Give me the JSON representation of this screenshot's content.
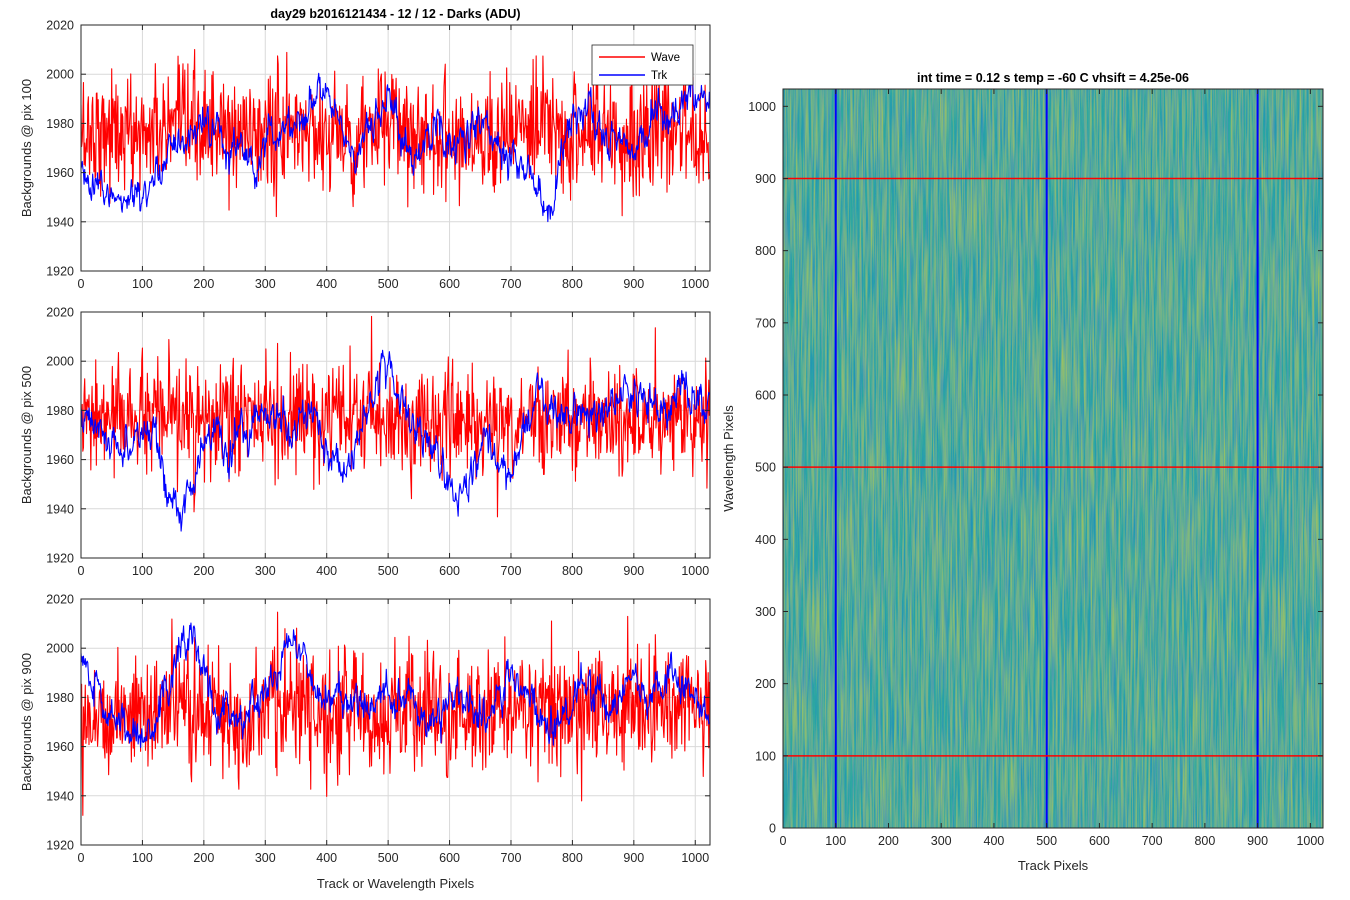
{
  "colors": {
    "wave": "#ff0000",
    "trk": "#0000ff",
    "grid": "#d9d9d9",
    "axis": "#262626",
    "image_base": "#2ea8a0",
    "image_light": "#a9c842",
    "image_dark": "#1a86c4"
  },
  "chart_data": [
    {
      "type": "line",
      "title": "day29 b2016121434 - 12 / 12 - Darks (ADU)",
      "ylabel": "Backgrounds @ pix 100",
      "xlabel": "",
      "xlim": [
        0,
        1024
      ],
      "ylim": [
        1920,
        2020
      ],
      "xticks": [
        "0",
        "100",
        "200",
        "300",
        "400",
        "500",
        "600",
        "700",
        "800",
        "900",
        "1000"
      ],
      "yticks": [
        "1920",
        "1940",
        "1960",
        "1980",
        "2000",
        "2020"
      ],
      "grid": true,
      "legend": {
        "placement": "top-right",
        "entries": [
          "Wave",
          "Trk"
        ]
      },
      "series": [
        {
          "name": "Wave",
          "color": "#ff0000",
          "baseline": 1975,
          "spread": 12,
          "x": [
            0,
            40,
            80,
            120,
            160,
            200,
            240,
            280,
            320,
            360,
            400,
            440,
            480,
            520,
            560,
            600,
            640,
            680,
            720,
            760,
            800,
            840,
            880,
            920,
            960,
            1000,
            1023
          ],
          "values": [
            1976,
            1978,
            1975,
            1977,
            1976,
            1979,
            1974,
            1977,
            1975,
            1978,
            1976,
            1974,
            1977,
            1979,
            1975,
            1976,
            1973,
            1978,
            1976,
            1977,
            1975,
            1978,
            1974,
            1977,
            1976,
            1978,
            1975
          ]
        },
        {
          "name": "Trk",
          "color": "#0000ff",
          "x": [
            0,
            20,
            40,
            60,
            80,
            100,
            120,
            140,
            160,
            180,
            200,
            220,
            240,
            260,
            280,
            300,
            320,
            340,
            360,
            380,
            400,
            420,
            440,
            460,
            480,
            500,
            520,
            540,
            560,
            580,
            600,
            620,
            640,
            660,
            680,
            700,
            720,
            740,
            760,
            780,
            800,
            820,
            840,
            860,
            880,
            900,
            920,
            940,
            960,
            980,
            1000,
            1023
          ],
          "values": [
            1960,
            1952,
            1955,
            1948,
            1950,
            1945,
            1960,
            1970,
            1975,
            1968,
            1985,
            1978,
            1965,
            1972,
            1958,
            1975,
            1978,
            1980,
            1982,
            1990,
            1992,
            1982,
            1966,
            1972,
            1982,
            1990,
            1978,
            1965,
            1972,
            1978,
            1972,
            1975,
            1980,
            1978,
            1972,
            1968,
            1962,
            1955,
            1942,
            1965,
            1982,
            1985,
            1980,
            1972,
            1975,
            1970,
            1978,
            1985,
            1982,
            1988,
            1995,
            1985
          ]
        }
      ]
    },
    {
      "type": "line",
      "title": "",
      "ylabel": "Backgrounds @ pix 500",
      "xlabel": "",
      "xlim": [
        0,
        1024
      ],
      "ylim": [
        1920,
        2020
      ],
      "xticks": [
        "0",
        "100",
        "200",
        "300",
        "400",
        "500",
        "600",
        "700",
        "800",
        "900",
        "1000"
      ],
      "yticks": [
        "1920",
        "1940",
        "1960",
        "1980",
        "2000",
        "2020"
      ],
      "grid": true,
      "series": [
        {
          "name": "Wave",
          "color": "#ff0000",
          "baseline": 1975,
          "spread": 11,
          "x": [
            0,
            40,
            80,
            120,
            160,
            200,
            240,
            280,
            320,
            360,
            400,
            440,
            480,
            520,
            560,
            600,
            640,
            680,
            720,
            760,
            800,
            840,
            880,
            920,
            960,
            1000,
            1023
          ],
          "values": [
            1974,
            1976,
            1978,
            1975,
            1977,
            1973,
            1976,
            1978,
            1975,
            1977,
            1974,
            1976,
            1978,
            1975,
            1974,
            1977,
            1975,
            1973,
            1976,
            1978,
            1975,
            1977,
            1976,
            1974,
            1977,
            1976,
            1975
          ]
        },
        {
          "name": "Trk",
          "color": "#0000ff",
          "x": [
            0,
            20,
            40,
            60,
            80,
            100,
            120,
            140,
            160,
            180,
            200,
            220,
            240,
            260,
            280,
            300,
            320,
            340,
            360,
            380,
            400,
            420,
            440,
            460,
            480,
            500,
            520,
            540,
            560,
            580,
            600,
            620,
            640,
            660,
            680,
            700,
            720,
            740,
            760,
            780,
            800,
            820,
            840,
            860,
            880,
            900,
            920,
            940,
            960,
            980,
            1000,
            1023
          ],
          "values": [
            1978,
            1975,
            1970,
            1966,
            1962,
            1968,
            1975,
            1950,
            1940,
            1948,
            1965,
            1972,
            1962,
            1970,
            1975,
            1980,
            1976,
            1968,
            1985,
            1978,
            1960,
            1955,
            1962,
            1975,
            1990,
            2000,
            1985,
            1972,
            1968,
            1960,
            1948,
            1946,
            1956,
            1972,
            1960,
            1950,
            1968,
            1985,
            1982,
            1975,
            1978,
            1980,
            1974,
            1982,
            1988,
            1985,
            1980,
            1978,
            1982,
            1990,
            1985,
            1982
          ]
        }
      ]
    },
    {
      "type": "line",
      "title": "",
      "ylabel": "Backgrounds @ pix 900",
      "xlabel": "Track or Wavelength Pixels",
      "xlim": [
        0,
        1024
      ],
      "ylim": [
        1920,
        2020
      ],
      "xticks": [
        "0",
        "100",
        "200",
        "300",
        "400",
        "500",
        "600",
        "700",
        "800",
        "900",
        "1000"
      ],
      "yticks": [
        "1920",
        "1940",
        "1960",
        "1980",
        "2000",
        "2020"
      ],
      "grid": true,
      "series": [
        {
          "name": "Wave",
          "color": "#ff0000",
          "baseline": 1975,
          "spread": 12,
          "x": [
            0,
            40,
            80,
            120,
            160,
            200,
            240,
            280,
            320,
            360,
            400,
            440,
            480,
            520,
            560,
            600,
            640,
            680,
            720,
            760,
            800,
            840,
            880,
            920,
            960,
            1000,
            1023
          ],
          "values": [
            1974,
            1972,
            1975,
            1973,
            1976,
            1974,
            1972,
            1975,
            1977,
            1974,
            1973,
            1975,
            1972,
            1974,
            1976,
            1970,
            1973,
            1976,
            1975,
            1977,
            1978,
            1976,
            1975,
            1978,
            1977,
            1975,
            1974
          ]
        },
        {
          "name": "Trk",
          "color": "#0000ff",
          "x": [
            0,
            20,
            40,
            60,
            80,
            100,
            120,
            140,
            160,
            180,
            200,
            220,
            240,
            260,
            280,
            300,
            320,
            340,
            360,
            380,
            400,
            420,
            440,
            460,
            480,
            500,
            520,
            540,
            560,
            580,
            600,
            620,
            640,
            660,
            680,
            700,
            720,
            740,
            760,
            780,
            800,
            820,
            840,
            860,
            880,
            900,
            920,
            940,
            960,
            980,
            1000,
            1023
          ],
          "values": [
            1998,
            1985,
            1975,
            1970,
            1968,
            1962,
            1972,
            1985,
            2002,
            2005,
            1990,
            1975,
            1972,
            1968,
            1975,
            1982,
            1990,
            2005,
            2000,
            1985,
            1975,
            1980,
            1975,
            1978,
            1982,
            1980,
            1976,
            1978,
            1965,
            1972,
            1978,
            1982,
            1975,
            1972,
            1980,
            1988,
            1985,
            1975,
            1965,
            1972,
            1978,
            1985,
            1982,
            1975,
            1982,
            1988,
            1978,
            1985,
            1992,
            1985,
            1980,
            1975
          ]
        }
      ]
    },
    {
      "type": "heatmap",
      "title": "int time = 0.12 s   temp = -60 C   vhsift = 4.25e-06",
      "xlabel": "Track Pixels",
      "ylabel": "Wavelength Pixels",
      "xlim": [
        0,
        1024
      ],
      "ylim": [
        0,
        1024
      ],
      "xticks": [
        "0",
        "100",
        "200",
        "300",
        "400",
        "500",
        "600",
        "700",
        "800",
        "900",
        "1000"
      ],
      "yticks": [
        "0",
        "100",
        "200",
        "300",
        "400",
        "500",
        "600",
        "700",
        "800",
        "900",
        "1000"
      ],
      "vertical_lines": {
        "color": "#0000ff",
        "x": [
          100,
          500,
          900
        ]
      },
      "horizontal_lines": {
        "color": "#ff0000",
        "y": [
          100,
          500,
          900
        ]
      }
    }
  ]
}
